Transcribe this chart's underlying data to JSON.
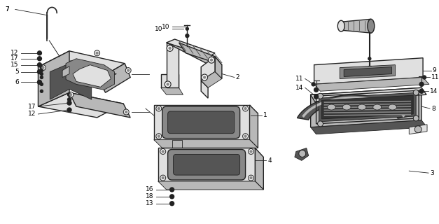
{
  "bg_color": "#ffffff",
  "lc": "#222222",
  "fig_width": 6.27,
  "fig_height": 3.2,
  "dpi": 100,
  "lbl_fs": 6.5,
  "lw_main": 1.0,
  "lw_thin": 0.6,
  "gray_light": "#e0e0e0",
  "gray_mid": "#b8b8b8",
  "gray_dark": "#888888",
  "gray_xdark": "#555555",
  "white": "#f8f8f8"
}
